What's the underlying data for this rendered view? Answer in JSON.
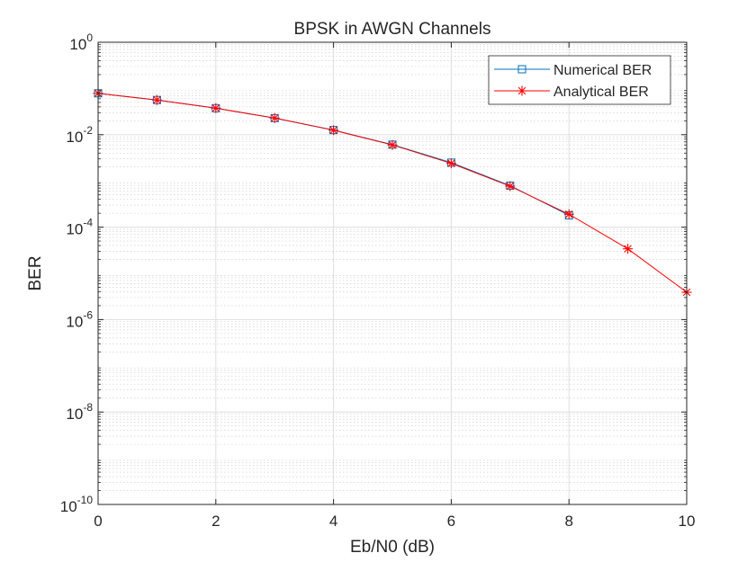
{
  "chart_data": {
    "type": "line",
    "title": "BPSK in AWGN Channels",
    "xlabel": "Eb/N0 (dB)",
    "ylabel": "BER",
    "xlim": [
      0,
      10
    ],
    "ylim": [
      1e-10,
      1
    ],
    "y_scale": "log",
    "grid": "on",
    "minor_grid": "on",
    "legend_position": "top-right",
    "x_ticks": [
      0,
      2,
      4,
      6,
      8,
      10
    ],
    "x_tick_labels": [
      "0",
      "2",
      "4",
      "6",
      "8",
      "10"
    ],
    "y_ticks": [
      1e-10,
      1e-08,
      1e-06,
      0.0001,
      0.01,
      1
    ],
    "y_tick_labels": [
      {
        "base": "10",
        "exp": "-10"
      },
      {
        "base": "10",
        "exp": "-8"
      },
      {
        "base": "10",
        "exp": "-6"
      },
      {
        "base": "10",
        "exp": "-4"
      },
      {
        "base": "10",
        "exp": "-2"
      },
      {
        "base": "10",
        "exp": "0"
      }
    ],
    "series": [
      {
        "name": "Numerical BER",
        "color": "#0072BD",
        "marker": "square",
        "x": [
          0,
          1,
          2,
          3,
          4,
          5,
          6,
          7,
          8
        ],
        "values": [
          0.0786,
          0.0563,
          0.0375,
          0.0228,
          0.0126,
          0.0061,
          0.00249,
          0.00079,
          0.00018
        ]
      },
      {
        "name": "Analytical BER",
        "color": "#FF0000",
        "marker": "asterisk",
        "x": [
          0,
          1,
          2,
          3,
          4,
          5,
          6,
          7,
          8,
          9,
          10
        ],
        "values": [
          0.0786,
          0.0563,
          0.0375,
          0.0229,
          0.0125,
          0.006,
          0.0024,
          0.00077,
          0.00019,
          3.4e-05,
          3.9e-06
        ]
      }
    ]
  }
}
